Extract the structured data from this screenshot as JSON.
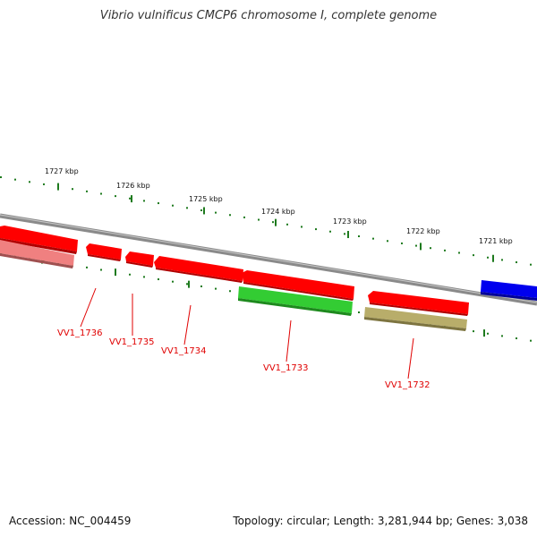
{
  "title": "Vibrio vulnificus CMCP6 chromosome I, complete genome",
  "footer": {
    "accession": "Accession: NC_004459",
    "summary": "Topology: circular; Length: 3,281,944 bp; Genes: 3,038"
  },
  "scale_labels": [
    "1727 kbp",
    "1726 kbp",
    "1725 kbp",
    "1724 kbp",
    "1723 kbp",
    "1722 kbp",
    "1721 kbp"
  ],
  "gene_labels": [
    "VV1_1736",
    "VV1_1735",
    "VV1_1734",
    "VV1_1733",
    "VV1_1732"
  ],
  "colors": {
    "backbone": "#8a8a8a",
    "forward_gene": "#ff0000",
    "pseudogene": "#f08080",
    "rna_gene": "#33cc33",
    "other_gene": "#b8ad6a",
    "blue_gene": "#0000ee",
    "tick": "#1e7a1e",
    "label": "#e00000"
  }
}
